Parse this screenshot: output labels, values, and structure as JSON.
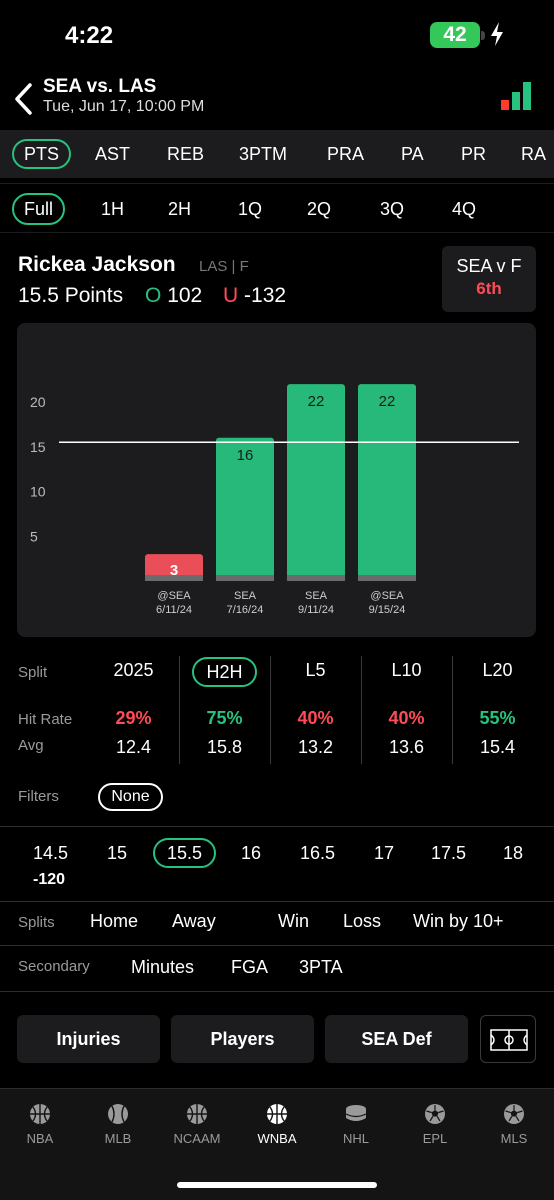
{
  "status_bar": {
    "time": "4:22",
    "battery": "42"
  },
  "header": {
    "title": "SEA vs. LAS",
    "subtitle": "Tue, Jun 17, 10:00 PM"
  },
  "stat_tabs": [
    "PTS",
    "AST",
    "REB",
    "3PTM",
    "PRA",
    "PA",
    "PR",
    "RA"
  ],
  "stat_tab_selected": "PTS",
  "period_tabs": [
    "Full",
    "1H",
    "2H",
    "1Q",
    "2Q",
    "3Q",
    "4Q"
  ],
  "period_tab_selected": "Full",
  "player": {
    "name": "Rickea Jackson",
    "team_pos": "LAS | F",
    "line": "15.5 Points",
    "over_symbol": "O",
    "over_odds": "102",
    "under_symbol": "U",
    "under_odds": "-132"
  },
  "matchup": {
    "label": "SEA v F",
    "rank": "6th"
  },
  "chart_data": {
    "type": "bar",
    "categories": [
      "@SEA 6/11/24",
      "SEA 7/16/24",
      "SEA 9/11/24",
      "@SEA 9/15/24"
    ],
    "category_lines": [
      [
        "@SEA",
        "6/11/24"
      ],
      [
        "SEA",
        "7/16/24"
      ],
      [
        "SEA",
        "9/11/24"
      ],
      [
        "@SEA",
        "9/15/24"
      ]
    ],
    "values": [
      3,
      16,
      22,
      22
    ],
    "labels": [
      "3",
      "16",
      "22",
      "22"
    ],
    "hit": [
      false,
      true,
      true,
      true
    ],
    "line_value": 15.5,
    "yticks": [
      5,
      10,
      15,
      20
    ],
    "ylim": [
      0,
      24.5
    ],
    "colors": {
      "hit": "#27b97a",
      "miss": "#ea4e58",
      "base": "#6b6b6b"
    }
  },
  "stats": {
    "split_label": "Split",
    "hit_rate_label": "Hit Rate",
    "avg_label": "Avg",
    "columns": [
      {
        "name": "2025",
        "hit_rate": "29%",
        "avg": "12.4",
        "hit": false
      },
      {
        "name": "H2H",
        "hit_rate": "75%",
        "avg": "15.8",
        "hit": true
      },
      {
        "name": "L5",
        "hit_rate": "40%",
        "avg": "13.2",
        "hit": false
      },
      {
        "name": "L10",
        "hit_rate": "40%",
        "avg": "13.6",
        "hit": false
      },
      {
        "name": "L20",
        "hit_rate": "55%",
        "avg": "15.4",
        "hit": true
      }
    ],
    "selected": "H2H"
  },
  "filters": {
    "label": "Filters",
    "value": "None"
  },
  "lines": {
    "values": [
      "14.5",
      "15",
      "15.5",
      "16",
      "16.5",
      "17",
      "17.5",
      "18"
    ],
    "selected": "15.5",
    "first_odds": "-120"
  },
  "splits": {
    "label": "Splits",
    "items": [
      "Home",
      "Away",
      "Win",
      "Loss",
      "Win by 10+"
    ]
  },
  "secondary": {
    "label": "Secondary",
    "items": [
      "Minutes",
      "FGA",
      "3PTA"
    ]
  },
  "buttons": {
    "injuries": "Injuries",
    "players": "Players",
    "def": "SEA Def"
  },
  "nav": [
    "NBA",
    "MLB",
    "NCAAM",
    "WNBA",
    "NHL",
    "EPL",
    "MLS"
  ],
  "nav_selected": "WNBA",
  "colors": {
    "accent": "#27c27e",
    "negative": "#ff4b55",
    "card": "#1c1c1e"
  }
}
